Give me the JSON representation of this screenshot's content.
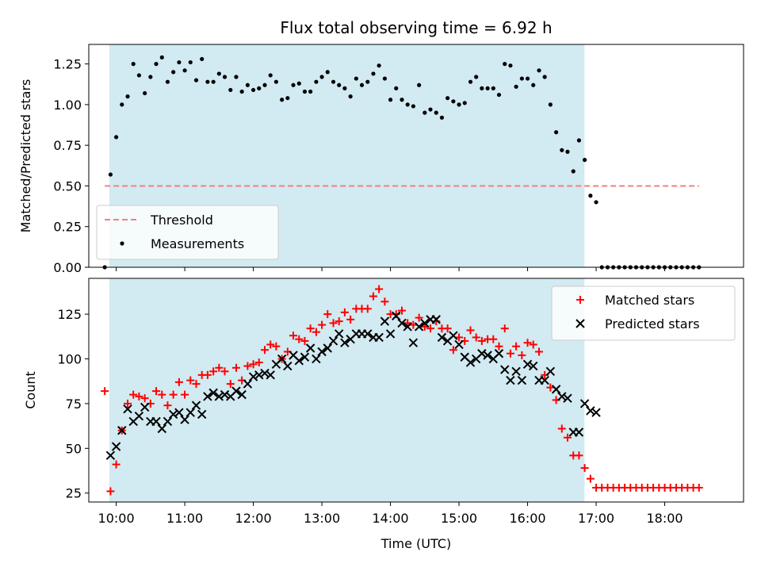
{
  "chart_data": [
    {
      "type": "scatter",
      "title": "Flux total observing time = 6.92 h",
      "xlabel": "",
      "ylabel": "Matched/Predicted stars",
      "ylim": [
        0,
        1.37
      ],
      "yticks": [
        "0.00",
        "0.25",
        "0.50",
        "0.75",
        "1.00",
        "1.25"
      ],
      "ytick_values": [
        0,
        0.25,
        0.5,
        0.75,
        1.0,
        1.25
      ],
      "xlim_hours": [
        9.6,
        19.15
      ],
      "shaded_span_hours": [
        9.9,
        16.83
      ],
      "shade_color": "#add8e6",
      "legend_position": "lower left",
      "threshold": {
        "name": "Threshold",
        "value": 0.5,
        "x_range_hours": [
          9.833,
          18.5
        ],
        "color": "#f08080"
      },
      "series": [
        {
          "name": "Measurements",
          "marker": "dot",
          "color": "#000000",
          "x_hours": [
            9.833,
            9.917,
            10.0,
            10.083,
            10.167,
            10.25,
            10.333,
            10.417,
            10.5,
            10.583,
            10.667,
            10.75,
            10.833,
            10.917,
            11.0,
            11.083,
            11.167,
            11.25,
            11.333,
            11.417,
            11.5,
            11.583,
            11.667,
            11.75,
            11.833,
            11.917,
            12.0,
            12.083,
            12.167,
            12.25,
            12.333,
            12.417,
            12.5,
            12.583,
            12.667,
            12.75,
            12.833,
            12.917,
            13.0,
            13.083,
            13.167,
            13.25,
            13.333,
            13.417,
            13.5,
            13.583,
            13.667,
            13.75,
            13.833,
            13.917,
            14.0,
            14.083,
            14.167,
            14.25,
            14.333,
            14.417,
            14.5,
            14.583,
            14.667,
            14.75,
            14.833,
            14.917,
            15.0,
            15.083,
            15.167,
            15.25,
            15.333,
            15.417,
            15.5,
            15.583,
            15.667,
            15.75,
            15.833,
            15.917,
            16.0,
            16.083,
            16.167,
            16.25,
            16.333,
            16.417,
            16.5,
            16.583,
            16.667,
            16.75,
            16.833,
            16.917,
            17.0,
            17.083,
            17.167,
            17.25,
            17.333,
            17.417,
            17.5,
            17.583,
            17.667,
            17.75,
            17.833,
            17.917,
            18.0,
            18.083,
            18.167,
            18.25,
            18.333,
            18.417,
            18.5
          ],
          "y": [
            0.0,
            0.57,
            0.8,
            1.0,
            1.05,
            1.25,
            1.18,
            1.07,
            1.17,
            1.25,
            1.29,
            1.14,
            1.2,
            1.26,
            1.21,
            1.26,
            1.15,
            1.28,
            1.14,
            1.14,
            1.19,
            1.17,
            1.09,
            1.17,
            1.08,
            1.12,
            1.09,
            1.1,
            1.12,
            1.18,
            1.14,
            1.03,
            1.04,
            1.12,
            1.13,
            1.08,
            1.08,
            1.14,
            1.17,
            1.2,
            1.14,
            1.12,
            1.1,
            1.05,
            1.16,
            1.12,
            1.14,
            1.19,
            1.24,
            1.16,
            1.03,
            1.1,
            1.03,
            1.0,
            0.99,
            1.12,
            0.95,
            0.97,
            0.95,
            0.92,
            1.04,
            1.02,
            1.0,
            1.01,
            1.14,
            1.17,
            1.1,
            1.1,
            1.1,
            1.06,
            1.25,
            1.24,
            1.11,
            1.16,
            1.16,
            1.12,
            1.21,
            1.17,
            1.0,
            0.83,
            0.72,
            0.71,
            0.59,
            0.78,
            0.66,
            0.44,
            0.4,
            0.0,
            0.0,
            0.0,
            0.0,
            0.0,
            0.0,
            0.0,
            0.0,
            0.0,
            0.0,
            0.0,
            0.0,
            0.0,
            0.0,
            0.0,
            0.0,
            0.0,
            0.0
          ]
        }
      ]
    },
    {
      "type": "scatter",
      "title": "",
      "xlabel": "Time (UTC)",
      "ylabel": "Count",
      "ylim": [
        20,
        145
      ],
      "yticks": [
        "25",
        "50",
        "75",
        "100",
        "125"
      ],
      "ytick_values": [
        25,
        50,
        75,
        100,
        125
      ],
      "xticks": [
        "10:00",
        "11:00",
        "12:00",
        "13:00",
        "14:00",
        "15:00",
        "16:00",
        "17:00",
        "18:00"
      ],
      "xtick_hours": [
        10,
        11,
        12,
        13,
        14,
        15,
        16,
        17,
        18
      ],
      "xlim_hours": [
        9.6,
        19.15
      ],
      "shaded_span_hours": [
        9.9,
        16.83
      ],
      "shade_color": "#add8e6",
      "legend_position": "upper right",
      "series": [
        {
          "name": "Matched stars",
          "marker": "plus",
          "color": "#ff0000",
          "x_hours": [
            9.833,
            9.917,
            10.0,
            10.083,
            10.167,
            10.25,
            10.333,
            10.417,
            10.5,
            10.583,
            10.667,
            10.75,
            10.833,
            10.917,
            11.0,
            11.083,
            11.167,
            11.25,
            11.333,
            11.417,
            11.5,
            11.583,
            11.667,
            11.75,
            11.833,
            11.917,
            12.0,
            12.083,
            12.167,
            12.25,
            12.333,
            12.417,
            12.5,
            12.583,
            12.667,
            12.75,
            12.833,
            12.917,
            13.0,
            13.083,
            13.167,
            13.25,
            13.333,
            13.417,
            13.5,
            13.583,
            13.667,
            13.75,
            13.833,
            13.917,
            14.0,
            14.083,
            14.167,
            14.25,
            14.333,
            14.417,
            14.5,
            14.583,
            14.667,
            14.75,
            14.833,
            14.917,
            15.0,
            15.083,
            15.167,
            15.25,
            15.333,
            15.417,
            15.5,
            15.583,
            15.667,
            15.75,
            15.833,
            15.917,
            16.0,
            16.083,
            16.167,
            16.25,
            16.333,
            16.417,
            16.5,
            16.583,
            16.667,
            16.75,
            16.833,
            16.917,
            17.0,
            17.083,
            17.167,
            17.25,
            17.333,
            17.417,
            17.5,
            17.583,
            17.667,
            17.75,
            17.833,
            17.917,
            18.0,
            18.083,
            18.167,
            18.25,
            18.333,
            18.417,
            18.5
          ],
          "y": [
            82,
            26,
            41,
            60,
            75,
            80,
            79,
            78,
            75,
            82,
            80,
            74,
            80,
            87,
            80,
            88,
            86,
            91,
            91,
            93,
            95,
            93,
            86,
            95,
            88,
            96,
            97,
            98,
            105,
            108,
            107,
            100,
            104,
            113,
            111,
            110,
            117,
            115,
            119,
            125,
            120,
            121,
            126,
            122,
            128,
            128,
            128,
            135,
            139,
            132,
            125,
            125,
            127,
            120,
            119,
            123,
            118,
            117,
            121,
            117,
            117,
            105,
            112,
            110,
            116,
            112,
            110,
            111,
            111,
            107,
            117,
            103,
            107,
            102,
            109,
            108,
            104,
            91,
            84,
            77,
            61,
            56,
            46,
            46,
            39,
            33,
            28,
            28,
            28,
            28,
            28,
            28,
            28,
            28,
            28,
            28,
            28,
            28,
            28,
            28,
            28,
            28,
            28,
            28,
            28
          ]
        },
        {
          "name": "Predicted stars",
          "marker": "x",
          "color": "#000000",
          "x_hours": [
            9.917,
            10.0,
            10.083,
            10.167,
            10.25,
            10.333,
            10.417,
            10.5,
            10.583,
            10.667,
            10.75,
            10.833,
            10.917,
            11.0,
            11.083,
            11.167,
            11.25,
            11.333,
            11.417,
            11.5,
            11.583,
            11.667,
            11.75,
            11.833,
            11.917,
            12.0,
            12.083,
            12.167,
            12.25,
            12.333,
            12.417,
            12.5,
            12.583,
            12.667,
            12.75,
            12.833,
            12.917,
            13.0,
            13.083,
            13.167,
            13.25,
            13.333,
            13.417,
            13.5,
            13.583,
            13.667,
            13.75,
            13.833,
            13.917,
            14.0,
            14.083,
            14.167,
            14.25,
            14.333,
            14.417,
            14.5,
            14.583,
            14.667,
            14.75,
            14.833,
            14.917,
            15.0,
            15.083,
            15.167,
            15.25,
            15.333,
            15.417,
            15.5,
            15.583,
            15.667,
            15.75,
            15.833,
            15.917,
            16.0,
            16.083,
            16.167,
            16.25,
            16.333,
            16.417,
            16.5,
            16.583,
            16.667,
            16.75,
            16.833,
            16.917,
            17.0
          ],
          "y": [
            46,
            51,
            60,
            72,
            65,
            68,
            73,
            65,
            65,
            61,
            65,
            69,
            70,
            66,
            70,
            74,
            69,
            79,
            81,
            79,
            80,
            79,
            82,
            80,
            86,
            90,
            91,
            92,
            91,
            97,
            100,
            96,
            102,
            99,
            101,
            106,
            100,
            104,
            106,
            110,
            114,
            109,
            111,
            114,
            114,
            114,
            112,
            112,
            121,
            114,
            124,
            120,
            118,
            109,
            118,
            120,
            122,
            122,
            112,
            110,
            113,
            108,
            101,
            98,
            100,
            103,
            102,
            100,
            103,
            94,
            88,
            93,
            88,
            97,
            96,
            88,
            88,
            93,
            83,
            79,
            78,
            59,
            59,
            75,
            71,
            70
          ]
        }
      ]
    }
  ]
}
